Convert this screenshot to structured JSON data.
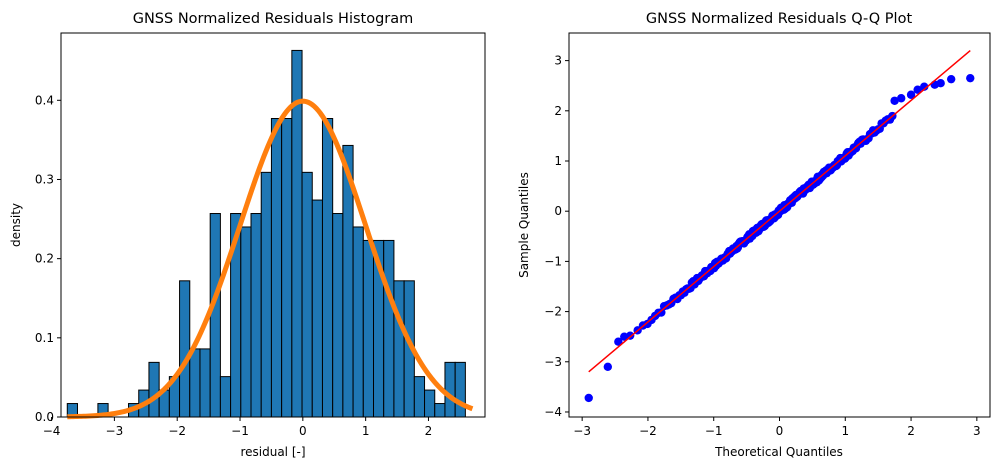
{
  "chart_data": [
    {
      "type": "bar",
      "title": "GNSS Normalized Residuals Histogram",
      "xlabel": "residual [-]",
      "ylabel": "density",
      "xlim": [
        -3.85,
        2.9
      ],
      "ylim": [
        0,
        0.485
      ],
      "xticks": [
        -4,
        -3,
        -2,
        -1,
        0,
        1,
        2
      ],
      "yticks": [
        0.0,
        0.1,
        0.2,
        0.3,
        0.4
      ],
      "bin_width": 0.1625,
      "bins": [
        {
          "left": -3.75,
          "density": 0.017
        },
        {
          "left": -3.5875,
          "density": 0.0
        },
        {
          "left": -3.425,
          "density": 0.0
        },
        {
          "left": -3.2625,
          "density": 0.017
        },
        {
          "left": -3.1,
          "density": 0.0
        },
        {
          "left": -2.9375,
          "density": 0.0
        },
        {
          "left": -2.775,
          "density": 0.017
        },
        {
          "left": -2.6125,
          "density": 0.034
        },
        {
          "left": -2.45,
          "density": 0.069
        },
        {
          "left": -2.2875,
          "density": 0.034
        },
        {
          "left": -2.125,
          "density": 0.051
        },
        {
          "left": -1.9625,
          "density": 0.172
        },
        {
          "left": -1.8,
          "density": 0.086
        },
        {
          "left": -1.6375,
          "density": 0.086
        },
        {
          "left": -1.475,
          "density": 0.257
        },
        {
          "left": -1.3125,
          "density": 0.051
        },
        {
          "left": -1.15,
          "density": 0.257
        },
        {
          "left": -0.9875,
          "density": 0.24
        },
        {
          "left": -0.825,
          "density": 0.257
        },
        {
          "left": -0.6625,
          "density": 0.309
        },
        {
          "left": -0.5,
          "density": 0.377
        },
        {
          "left": -0.3375,
          "density": 0.377
        },
        {
          "left": -0.175,
          "density": 0.463
        },
        {
          "left": -0.0125,
          "density": 0.309
        },
        {
          "left": 0.15,
          "density": 0.274
        },
        {
          "left": 0.3125,
          "density": 0.377
        },
        {
          "left": 0.475,
          "density": 0.257
        },
        {
          "left": 0.6375,
          "density": 0.343
        },
        {
          "left": 0.8,
          "density": 0.24
        },
        {
          "left": 0.9625,
          "density": 0.223
        },
        {
          "left": 1.125,
          "density": 0.223
        },
        {
          "left": 1.2875,
          "density": 0.223
        },
        {
          "left": 1.45,
          "density": 0.172
        },
        {
          "left": 1.6125,
          "density": 0.172
        },
        {
          "left": 1.775,
          "density": 0.051
        },
        {
          "left": 1.9375,
          "density": 0.034
        },
        {
          "left": 2.1,
          "density": 0.017
        },
        {
          "left": 2.2625,
          "density": 0.069
        },
        {
          "left": 2.425,
          "density": 0.069
        }
      ],
      "pdf_curve": {
        "mean": 0,
        "std": 1,
        "x_range": [
          -3.75,
          2.7
        ],
        "color": "#ff7f0e"
      },
      "bar_color": "#1f77b4",
      "edge_color": "#000000"
    },
    {
      "type": "scatter",
      "title": "GNSS Normalized Residuals Q-Q Plot",
      "xlabel": "Theoretical Quantiles",
      "ylabel": "Sample Quantiles",
      "xlim": [
        -3.2,
        3.2
      ],
      "ylim": [
        -4.1,
        3.55
      ],
      "xticks": [
        -3,
        -2,
        -1,
        0,
        1,
        2,
        3
      ],
      "yticks": [
        -4,
        -3,
        -2,
        -1,
        0,
        1,
        2,
        3
      ],
      "n_points": 290,
      "point_color": "#0000ff",
      "line_color": "#ff0000",
      "reference_line": {
        "x": [
          -2.9,
          2.9
        ],
        "y": [
          -3.2,
          3.2
        ]
      },
      "tail_points": [
        {
          "x": -2.9,
          "y": -3.72
        },
        {
          "x": -2.61,
          "y": -3.1
        },
        {
          "x": -2.45,
          "y": -2.6
        },
        {
          "x": -2.36,
          "y": -2.5
        },
        {
          "x": -2.27,
          "y": -2.48
        },
        {
          "x": 1.75,
          "y": 2.2
        },
        {
          "x": 1.85,
          "y": 2.25
        },
        {
          "x": 2.0,
          "y": 2.32
        },
        {
          "x": 2.1,
          "y": 2.42
        },
        {
          "x": 2.2,
          "y": 2.48
        },
        {
          "x": 2.36,
          "y": 2.52
        },
        {
          "x": 2.45,
          "y": 2.55
        },
        {
          "x": 2.61,
          "y": 2.63
        },
        {
          "x": 2.9,
          "y": 2.65
        }
      ]
    }
  ]
}
